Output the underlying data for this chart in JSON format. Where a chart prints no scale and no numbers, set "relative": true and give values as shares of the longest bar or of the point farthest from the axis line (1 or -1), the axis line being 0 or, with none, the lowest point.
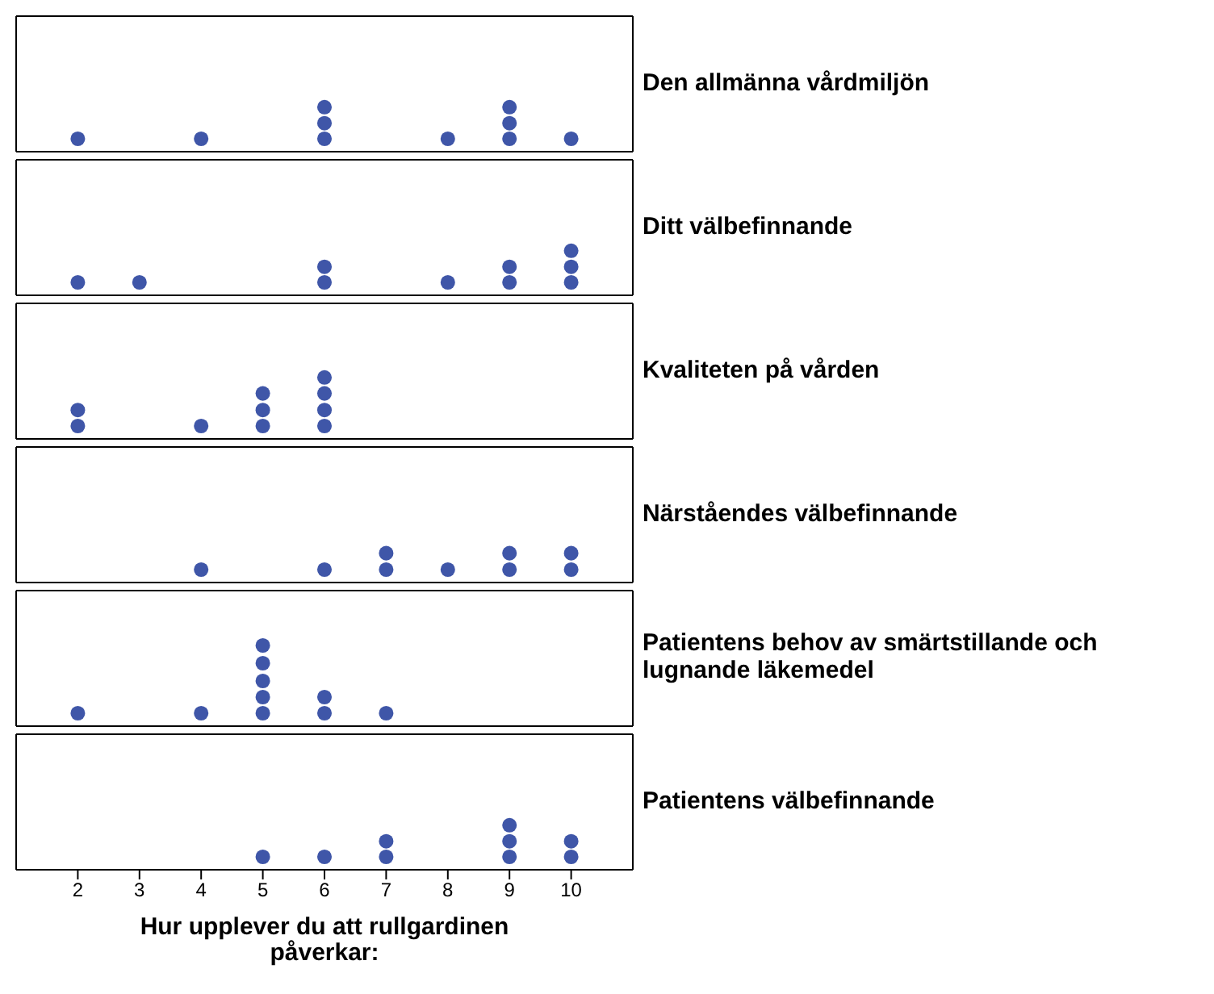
{
  "chart_data": [
    {
      "type": "scatter",
      "title": "Den allmänna vårdmiljön",
      "relative": true,
      "x": [
        2,
        4,
        6,
        6,
        6,
        8,
        9,
        9,
        9,
        10
      ],
      "values": [
        0.29,
        0.29,
        0.29,
        0.64,
        1,
        0.29,
        0.29,
        0.64,
        1,
        0.29
      ],
      "color": "#3f56a8",
      "marker": "circle",
      "xlim": [
        1,
        11
      ],
      "xticks": [
        2,
        3,
        4,
        5,
        6,
        7,
        8,
        9,
        10
      ],
      "tick_labels": false
    },
    {
      "type": "scatter",
      "title": "Ditt välbefinnande",
      "relative": true,
      "x": [
        2,
        3,
        6,
        6,
        8,
        9,
        9,
        10,
        10,
        10
      ],
      "values": [
        0.29,
        0.29,
        0.29,
        0.64,
        0.29,
        0.29,
        0.64,
        0.29,
        0.64,
        1
      ],
      "color": "#3f56a8",
      "marker": "circle",
      "xlim": [
        1,
        11
      ],
      "xticks": [
        2,
        3,
        4,
        5,
        6,
        7,
        8,
        9,
        10
      ],
      "tick_labels": false
    },
    {
      "type": "scatter",
      "title": "Kvaliteten på vården",
      "relative": true,
      "x": [
        2,
        2,
        4,
        5,
        5,
        5,
        6,
        6,
        6,
        6
      ],
      "values": [
        0.21,
        0.47,
        0.21,
        0.21,
        0.47,
        0.74,
        0.21,
        0.47,
        0.74,
        1
      ],
      "color": "#3f56a8",
      "marker": "circle",
      "xlim": [
        1,
        11
      ],
      "xticks": [
        2,
        3,
        4,
        5,
        6,
        7,
        8,
        9,
        10
      ],
      "tick_labels": false
    },
    {
      "type": "scatter",
      "title": "Närståendes välbefinnande",
      "relative": true,
      "x": [
        4,
        6,
        7,
        7,
        8,
        9,
        9,
        10,
        10
      ],
      "values": [
        0.44,
        0.44,
        0.44,
        1,
        0.44,
        0.44,
        1,
        0.44,
        1
      ],
      "color": "#3f56a8",
      "marker": "circle",
      "xlim": [
        1,
        11
      ],
      "xticks": [
        2,
        3,
        4,
        5,
        6,
        7,
        8,
        9,
        10
      ],
      "tick_labels": false
    },
    {
      "type": "scatter",
      "title": "Patientens behov av smärtstillande och lugnande läkemedel",
      "relative": true,
      "x": [
        2,
        4,
        5,
        5,
        5,
        5,
        5,
        6,
        6,
        7
      ],
      "values": [
        0.16,
        0.16,
        0.16,
        0.36,
        0.56,
        0.78,
        1,
        0.16,
        0.36,
        0.16
      ],
      "color": "#3f56a8",
      "marker": "circle",
      "xlim": [
        1,
        11
      ],
      "xticks": [
        2,
        3,
        4,
        5,
        6,
        7,
        8,
        9,
        10
      ],
      "tick_labels": false
    },
    {
      "type": "scatter",
      "title": "Patientens välbefinnande",
      "xlabel": "Hur upplever du att rullgardinen påverkar:",
      "relative": true,
      "x": [
        5,
        6,
        7,
        7,
        9,
        9,
        9,
        10,
        10
      ],
      "values": [
        0.29,
        0.29,
        0.29,
        0.64,
        0.29,
        0.64,
        1,
        0.29,
        0.64
      ],
      "color": "#3f56a8",
      "marker": "circle",
      "xlim": [
        1,
        11
      ],
      "xticks": [
        2,
        3,
        4,
        5,
        6,
        7,
        8,
        9,
        10
      ],
      "tick_labels": "x"
    }
  ]
}
